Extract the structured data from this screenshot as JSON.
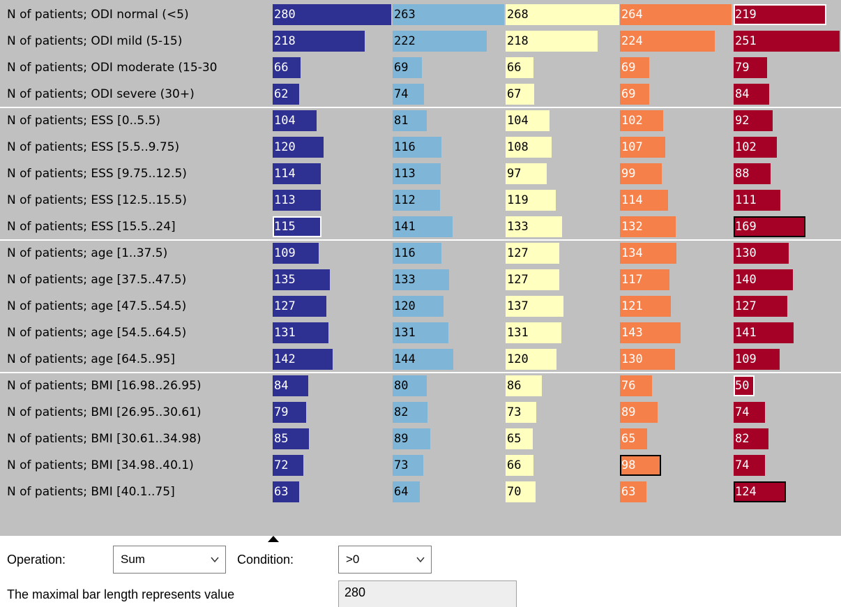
{
  "rows": [
    {
      "label": "N of patients; ODI normal (<5)",
      "values": [
        280,
        263,
        268,
        264,
        219
      ],
      "outlined": [
        false,
        false,
        false,
        false,
        "white"
      ]
    },
    {
      "label": "N of patients; ODI mild (5-15)",
      "values": [
        218,
        222,
        218,
        224,
        251
      ],
      "outlined": [
        false,
        false,
        false,
        false,
        false
      ]
    },
    {
      "label": "N of patients; ODI moderate (15-30",
      "values": [
        66,
        69,
        66,
        69,
        79
      ],
      "outlined": [
        false,
        false,
        false,
        false,
        false
      ]
    },
    {
      "label": "N of patients; ODI severe (30+)",
      "values": [
        62,
        74,
        67,
        69,
        84
      ],
      "outlined": [
        false,
        false,
        false,
        false,
        false
      ]
    },
    {
      "label": "N of patients; ESS [0..5.5)",
      "values": [
        104,
        81,
        104,
        102,
        92
      ],
      "outlined": [
        false,
        false,
        false,
        false,
        false
      ]
    },
    {
      "label": "N of patients; ESS [5.5..9.75)",
      "values": [
        120,
        116,
        108,
        107,
        102
      ],
      "outlined": [
        false,
        false,
        false,
        false,
        false
      ]
    },
    {
      "label": "N of patients; ESS [9.75..12.5)",
      "values": [
        114,
        113,
        97,
        99,
        88
      ],
      "outlined": [
        false,
        false,
        false,
        false,
        false
      ]
    },
    {
      "label": "N of patients; ESS [12.5..15.5)",
      "values": [
        113,
        112,
        119,
        114,
        111
      ],
      "outlined": [
        false,
        false,
        false,
        false,
        false
      ]
    },
    {
      "label": "N of patients; ESS [15.5..24]",
      "values": [
        115,
        141,
        133,
        132,
        169
      ],
      "outlined": [
        "white",
        false,
        false,
        false,
        "black"
      ]
    },
    {
      "label": "N of patients; age [1..37.5)",
      "values": [
        109,
        116,
        127,
        134,
        130
      ],
      "outlined": [
        false,
        false,
        false,
        false,
        false
      ]
    },
    {
      "label": "N of patients; age [37.5..47.5)",
      "values": [
        135,
        133,
        127,
        117,
        140
      ],
      "outlined": [
        false,
        false,
        false,
        false,
        false
      ]
    },
    {
      "label": "N of patients; age [47.5..54.5)",
      "values": [
        127,
        120,
        137,
        121,
        127
      ],
      "outlined": [
        false,
        false,
        false,
        false,
        false
      ]
    },
    {
      "label": "N of patients; age [54.5..64.5)",
      "values": [
        131,
        131,
        131,
        143,
        141
      ],
      "outlined": [
        false,
        false,
        false,
        false,
        false
      ]
    },
    {
      "label": "N of patients; age [64.5..95]",
      "values": [
        142,
        144,
        120,
        130,
        109
      ],
      "outlined": [
        false,
        false,
        false,
        false,
        false
      ]
    },
    {
      "label": "N of patients; BMI [16.98..26.95)",
      "values": [
        84,
        80,
        86,
        76,
        50
      ],
      "outlined": [
        false,
        false,
        false,
        false,
        "white"
      ]
    },
    {
      "label": "N of patients; BMI [26.95..30.61)",
      "values": [
        79,
        82,
        73,
        89,
        74
      ],
      "outlined": [
        false,
        false,
        false,
        false,
        false
      ]
    },
    {
      "label": "N of patients; BMI [30.61..34.98)",
      "values": [
        85,
        89,
        65,
        65,
        82
      ],
      "outlined": [
        false,
        false,
        false,
        false,
        false
      ]
    },
    {
      "label": "N of patients; BMI [34.98..40.1)",
      "values": [
        72,
        73,
        66,
        98,
        74
      ],
      "outlined": [
        false,
        false,
        false,
        "black",
        false
      ]
    },
    {
      "label": "N of patients; BMI [40.1..75]",
      "values": [
        63,
        64,
        70,
        63,
        124
      ],
      "outlined": [
        false,
        false,
        false,
        false,
        "black"
      ]
    }
  ],
  "group_ends": [
    3,
    8,
    13
  ],
  "max_value": 280,
  "columns": [
    {
      "color": "#2e3192",
      "text_color": "#ffffff"
    },
    {
      "color": "#7fb6d8",
      "text_color": "#000000"
    },
    {
      "color": "#ffffc0",
      "text_color": "#000000"
    },
    {
      "color": "#f6804a",
      "text_color": "#ffffff"
    },
    {
      "color": "#a50026",
      "text_color": "#ffffff"
    }
  ],
  "controls": {
    "operation_label": "Operation:",
    "operation_value": "Sum",
    "condition_label": "Condition:",
    "condition_value": ">0",
    "max_label": "The maximal bar length represents value",
    "max_field_value": "280"
  },
  "icons": {
    "dropdown": "chevron-down-icon",
    "marker": "triangle-up-icon"
  }
}
